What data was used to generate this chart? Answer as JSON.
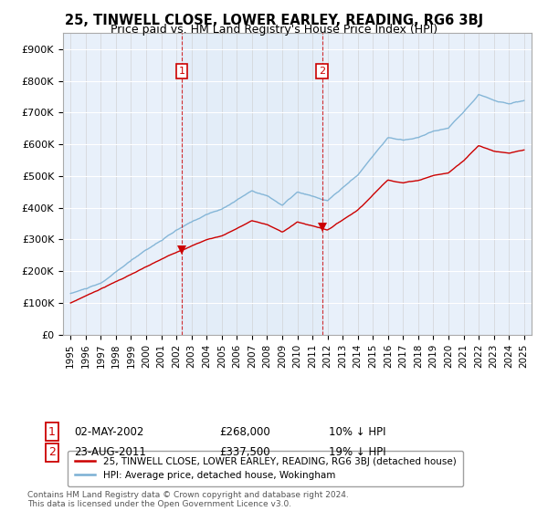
{
  "title": "25, TINWELL CLOSE, LOWER EARLEY, READING, RG6 3BJ",
  "subtitle": "Price paid vs. HM Land Registry's House Price Index (HPI)",
  "footnote": "Contains HM Land Registry data © Crown copyright and database right 2024.\nThis data is licensed under the Open Government Licence v3.0.",
  "legend_line1": "25, TINWELL CLOSE, LOWER EARLEY, READING, RG6 3BJ (detached house)",
  "legend_line2": "HPI: Average price, detached house, Wokingham",
  "sale1_label": "1",
  "sale1_date": "02-MAY-2002",
  "sale1_price": "£268,000",
  "sale1_hpi": "10% ↓ HPI",
  "sale1_year": 2002.35,
  "sale1_value": 268000,
  "sale2_label": "2",
  "sale2_date": "23-AUG-2011",
  "sale2_price": "£337,500",
  "sale2_hpi": "19% ↓ HPI",
  "sale2_year": 2011.64,
  "sale2_value": 337500,
  "red_color": "#cc0000",
  "blue_color": "#7ab0d4",
  "shade_color": "#dce8f5",
  "dashed_color": "#cc0000",
  "ylim_min": 0,
  "ylim_max": 950000,
  "yticks": [
    0,
    100000,
    200000,
    300000,
    400000,
    500000,
    600000,
    700000,
    800000,
    900000
  ],
  "ytick_labels": [
    "£0",
    "£100K",
    "£200K",
    "£300K",
    "£400K",
    "£500K",
    "£600K",
    "£700K",
    "£800K",
    "£900K"
  ],
  "xlim_min": 1994.5,
  "xlim_max": 2025.5,
  "background_color": "#ffffff",
  "plot_bg_color": "#e8f0fa"
}
